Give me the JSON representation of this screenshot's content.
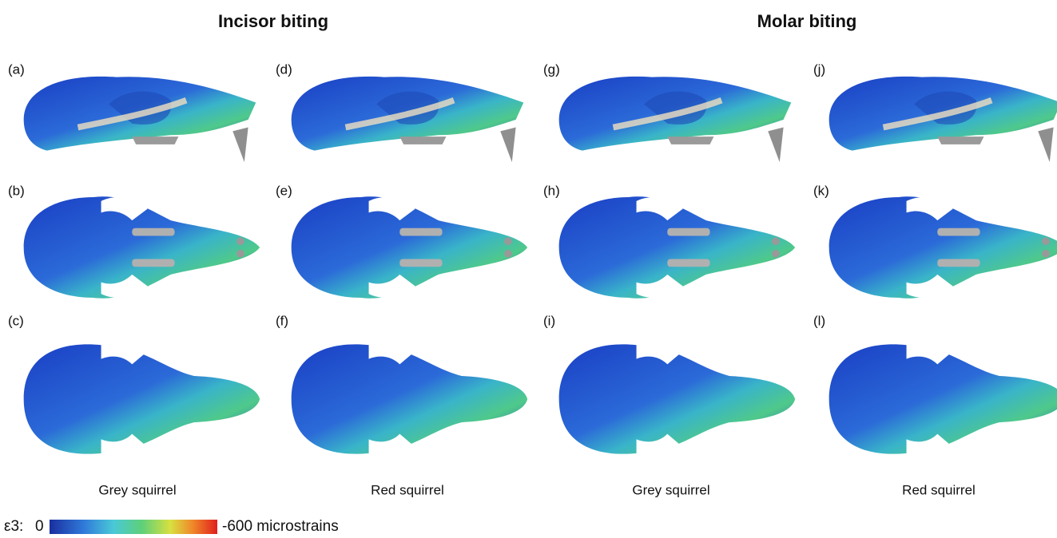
{
  "header": {
    "left": "Incisor biting",
    "right": "Molar biting"
  },
  "panels": {
    "row1": [
      "(a)",
      "(d)",
      "(g)",
      "(j)"
    ],
    "row2": [
      "(b)",
      "(e)",
      "(h)",
      "(k)"
    ],
    "row3": [
      "(c)",
      "(f)",
      "(i)",
      "(l)"
    ]
  },
  "species": [
    "Grey squirrel",
    "Red squirrel",
    "Grey squirrel",
    "Red squirrel"
  ],
  "colorbar": {
    "label": "ε3:",
    "min": "0",
    "max": "-600 microstrains"
  }
}
